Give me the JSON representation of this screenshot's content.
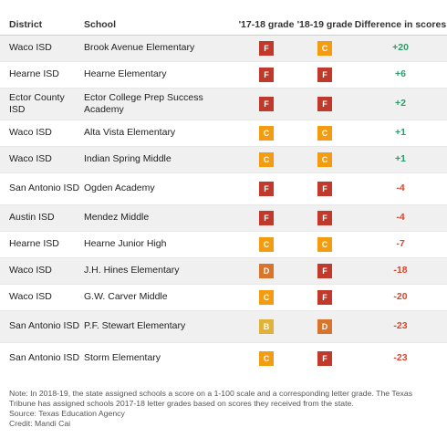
{
  "header": {
    "district": "District",
    "school": "School",
    "grade_1718": "'17-18 grade",
    "grade_1819": "'18-19 grade",
    "difference": "Difference in scores"
  },
  "grade_colors": {
    "F": "#c0392b",
    "C": "#f39c12",
    "D": "#d9742b",
    "B": "#e0b23a"
  },
  "rows": [
    {
      "district": "Waco ISD",
      "school": "Brook Avenue Elementary",
      "g1718": "F",
      "g1819": "C",
      "diff": "+20"
    },
    {
      "district": "Hearne ISD",
      "school": "Hearne Elementary",
      "g1718": "F",
      "g1819": "F",
      "diff": "+6"
    },
    {
      "district": "Ector County ISD",
      "school": "Ector College Prep Success Academy",
      "g1718": "F",
      "g1819": "F",
      "diff": "+2"
    },
    {
      "district": "Waco ISD",
      "school": "Alta Vista Elementary",
      "g1718": "C",
      "g1819": "C",
      "diff": "+1"
    },
    {
      "district": "Waco ISD",
      "school": "Indian Spring Middle",
      "g1718": "C",
      "g1819": "C",
      "diff": "+1"
    },
    {
      "district": "San Antonio ISD",
      "school": "Ogden Academy",
      "g1718": "F",
      "g1819": "F",
      "diff": "-4"
    },
    {
      "district": "Austin ISD",
      "school": "Mendez Middle",
      "g1718": "F",
      "g1819": "F",
      "diff": "-4"
    },
    {
      "district": "Hearne ISD",
      "school": "Hearne Junior High",
      "g1718": "C",
      "g1819": "C",
      "diff": "-7"
    },
    {
      "district": "Waco ISD",
      "school": "J.H. Hines Elementary",
      "g1718": "D",
      "g1819": "F",
      "diff": "-18"
    },
    {
      "district": "Waco ISD",
      "school": "G.W. Carver Middle",
      "g1718": "C",
      "g1819": "F",
      "diff": "-20"
    },
    {
      "district": "San Antonio ISD",
      "school": "P.F. Stewart Elementary",
      "g1718": "B",
      "g1819": "D",
      "diff": "-23"
    },
    {
      "district": "San Antonio ISD",
      "school": "Storm Elementary",
      "g1718": "C",
      "g1819": "F",
      "diff": "-23"
    }
  ],
  "notes": {
    "note": "Note: In 2018-19, the state assigned schools a score on a 1-100 scale and a corresponding letter grade. The Texas Tribune has assigned schools 2017-18 letter grades based on scores they received from the state.",
    "source": "Source: Texas Education Agency",
    "credit": "Credit: Mandi Cai"
  }
}
